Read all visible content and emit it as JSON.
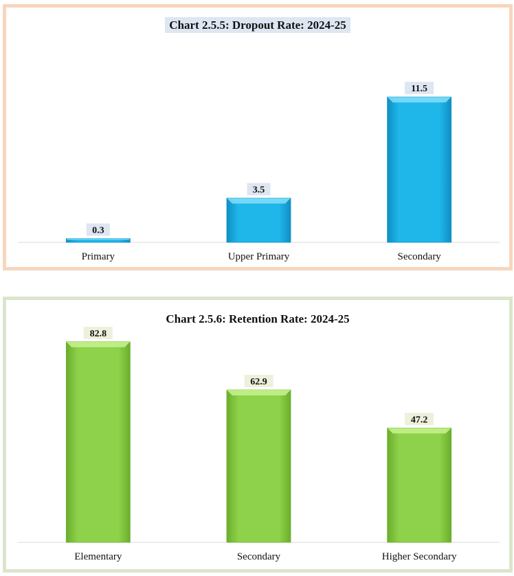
{
  "chart_data": [
    {
      "type": "bar",
      "title": "Chart 2.5.5: Dropout Rate: 2024-25",
      "categories": [
        "Primary",
        "Upper Primary",
        "Secondary"
      ],
      "values": [
        0.3,
        3.5,
        11.5
      ],
      "xlabel": "",
      "ylabel": "",
      "ylim": [
        0,
        12
      ],
      "grid": false,
      "legend": "none",
      "colors": {
        "bar": "#1fb6ea",
        "bar_light": "#7ddcf8",
        "bar_dark": "#0f8fc4",
        "label_bg": "#dde6f1"
      }
    },
    {
      "type": "bar",
      "title": "Chart 2.5.6: Retention Rate: 2024-25",
      "categories": [
        "Elementary",
        "Secondary",
        "Higher Secondary"
      ],
      "values": [
        82.8,
        62.9,
        47.2
      ],
      "xlabel": "",
      "ylabel": "",
      "ylim": [
        0,
        85
      ],
      "grid": false,
      "legend": "none",
      "colors": {
        "bar": "#8ed14a",
        "bar_light": "#c4ef8c",
        "bar_dark": "#6aae2c",
        "label_bg": "#eef0dc"
      }
    }
  ]
}
